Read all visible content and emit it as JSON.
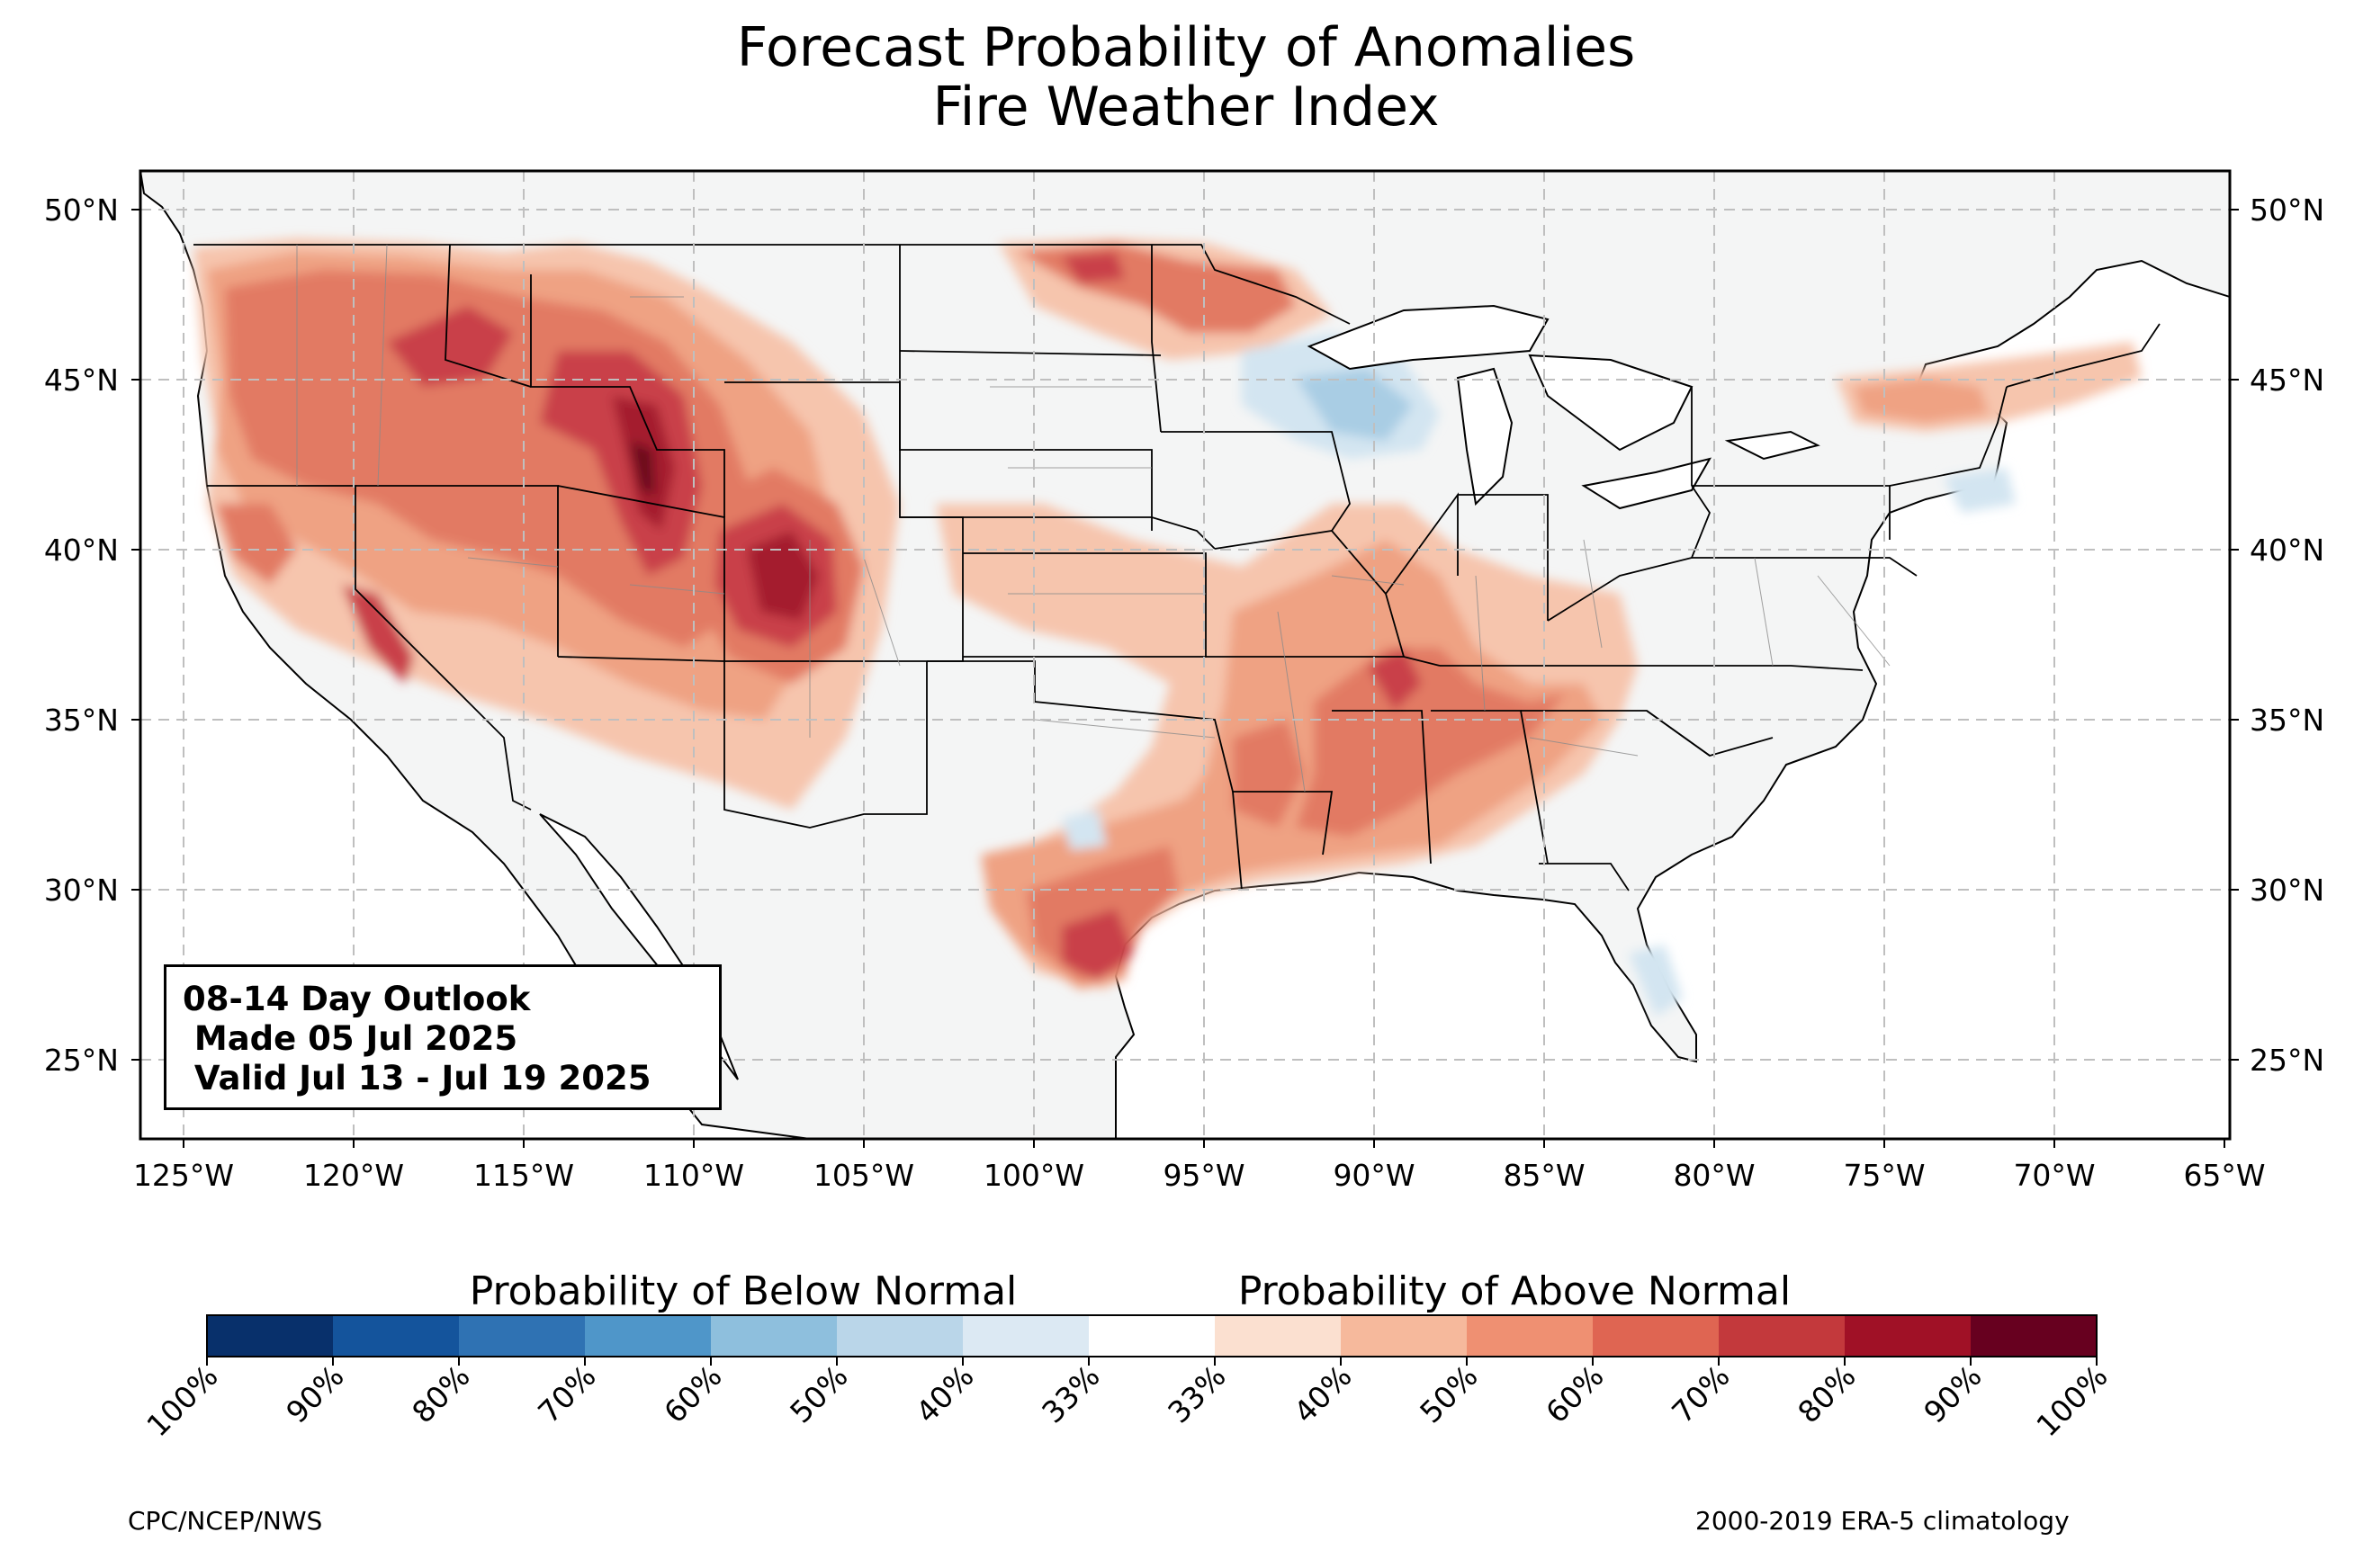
{
  "title": {
    "line1": "Forecast Probability of Anomalies",
    "line2": "Fire Weather Index"
  },
  "outlook": {
    "line1": "08-14 Day Outlook",
    "line2": " Made 05 Jul 2025",
    "line3": " Valid Jul 13 - Jul 19 2025"
  },
  "lat_labels": [
    "50°N",
    "45°N",
    "40°N",
    "35°N",
    "30°N",
    "25°N"
  ],
  "lon_labels": [
    "125°W",
    "120°W",
    "115°W",
    "110°W",
    "105°W",
    "100°W",
    "95°W",
    "90°W",
    "85°W",
    "80°W",
    "75°W",
    "70°W",
    "65°W"
  ],
  "colorbar": {
    "below_title": "Probability of Below Normal",
    "above_title": "Probability of Above Normal",
    "tick_labels": [
      "100%",
      "90%",
      "80%",
      "70%",
      "60%",
      "50%",
      "40%",
      "33%",
      "33%",
      "40%",
      "50%",
      "60%",
      "70%",
      "80%",
      "90%",
      "100%"
    ],
    "colors": [
      "#08306b",
      "#14549c",
      "#2f72b3",
      "#4f96c9",
      "#8ebfdd",
      "#bad6e9",
      "#dce9f3",
      "#ffffff",
      "#fbe0d0",
      "#f6b99c",
      "#ef9072",
      "#df6552",
      "#c3393c",
      "#a01126",
      "#67001f"
    ]
  },
  "footer": {
    "left": "CPC/NCEP/NWS",
    "right": "2000-2019 ERA-5 climatology"
  },
  "map_colors": {
    "land": "#f4f5f5",
    "ocean": "#ffffff",
    "above_40": "#f6c5ad",
    "above_50": "#efa283",
    "above_60": "#e27a63",
    "above_70": "#c9404a",
    "above_80": "#a41a2e",
    "above_90": "#6b0a1f",
    "below_40": "#d3e5f1",
    "below_50": "#a9cde4"
  }
}
